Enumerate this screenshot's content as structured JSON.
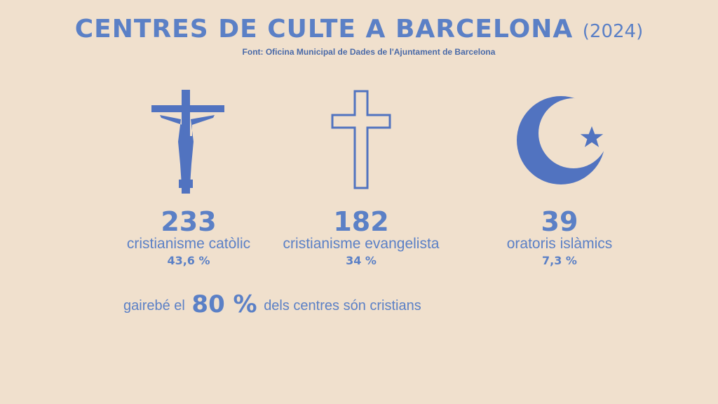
{
  "header": {
    "title": "CENTRES DE CULTE A BARCELONA",
    "year": "(2024)",
    "source": "Font: Oficina Municipal de Dades de l'Ajuntament de Barcelona"
  },
  "colors": {
    "background": "#f0e0cd",
    "accent": "#5b80c6",
    "icon": "#5173c0"
  },
  "items": [
    {
      "icon": "crucifix-icon",
      "count": "233",
      "label": "cristianisme catòlic",
      "percent": "43,6 %"
    },
    {
      "icon": "cross-outline-icon",
      "count": "182",
      "label": "cristianisme evangelista",
      "percent": "34 %"
    },
    {
      "icon": "crescent-star-icon",
      "count": "39",
      "label": "oratoris islàmics",
      "percent": "7,3 %"
    }
  ],
  "summary": {
    "prefix": "gairebé el",
    "value": "80 %",
    "suffix": "dels centres són cristians"
  }
}
